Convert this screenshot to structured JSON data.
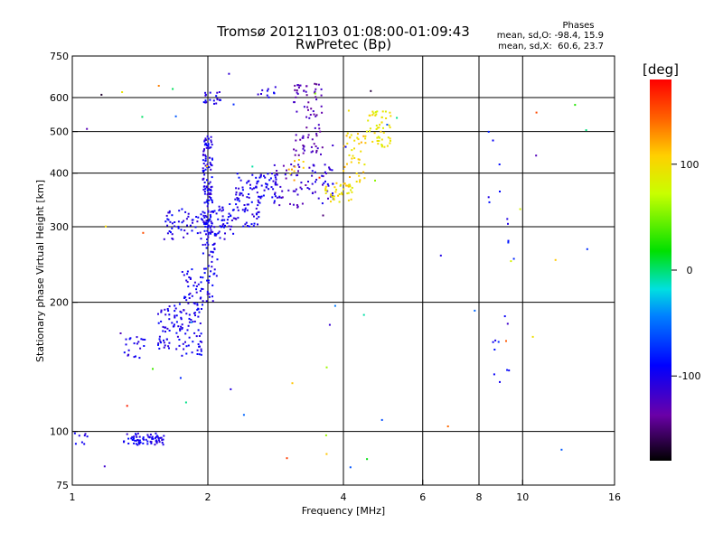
{
  "chart_data": {
    "type": "scatter",
    "title": "Tromsø 20121103 01:08:00-01:09:43",
    "subtitle": "RwPretec (Bp)",
    "xlabel": "Frequency [MHz]",
    "ylabel": "Stationary phase Virtual Height [km]",
    "x_scale": "log",
    "y_scale": "log",
    "xlim": [
      1,
      16
    ],
    "ylim": [
      75,
      750
    ],
    "x_ticks": [
      "1",
      "2",
      "4",
      "6",
      "8",
      "10",
      "16"
    ],
    "x_tick_values": [
      1,
      2,
      4,
      6,
      8,
      10,
      16
    ],
    "y_ticks": [
      "750",
      "600",
      "500",
      "400",
      "300",
      "200",
      "100",
      "75"
    ],
    "y_tick_values": [
      750,
      600,
      500,
      400,
      300,
      200,
      100,
      75
    ],
    "y_gridlines": [
      600,
      500,
      400,
      300,
      200,
      100
    ],
    "x_gridlines": [
      2,
      4,
      6,
      8,
      10
    ],
    "grid": true,
    "stats": {
      "heading": "Phases",
      "line1": "mean, sd,O: -98.4, 15.9",
      "line2": "mean, sd,X:  60.6, 23.7"
    },
    "colorbar": {
      "label": "[deg]",
      "range": [
        -180,
        180
      ],
      "ticks": [
        "100",
        "0",
        "-100"
      ],
      "tick_values": [
        100,
        0,
        -100
      ],
      "placement": "right"
    },
    "series": [
      {
        "clusters": [
          {
            "f": [
              1.0,
              1.08
            ],
            "h": [
              92,
              100
            ],
            "phase": -100,
            "n": 8
          },
          {
            "f": [
              1.3,
              1.6
            ],
            "h": [
              93,
              99
            ],
            "phase": -100,
            "n": 70
          },
          {
            "f": [
              1.3,
              1.45
            ],
            "h": [
              148,
              168
            ],
            "phase": -100,
            "n": 20
          },
          {
            "f": [
              1.55,
              1.75
            ],
            "h": [
              155,
              200
            ],
            "phase": -100,
            "n": 60
          },
          {
            "f": [
              1.75,
              1.95
            ],
            "h": [
              150,
              240
            ],
            "phase": -100,
            "n": 90
          },
          {
            "f": [
              1.6,
              2.3
            ],
            "h": [
              280,
              330
            ],
            "phase": -100,
            "n": 100
          },
          {
            "f": [
              1.95,
              2.05
            ],
            "h": [
              300,
              490
            ],
            "phase": -100,
            "n": 110
          },
          {
            "f": [
              1.95,
              2.1
            ],
            "h": [
              200,
              300
            ],
            "phase": -100,
            "n": 50
          },
          {
            "f": [
              1.95,
              2.15
            ],
            "h": [
              580,
              620
            ],
            "phase": -100,
            "n": 20
          },
          {
            "f": [
              2.1,
              2.6
            ],
            "h": [
              300,
              340
            ],
            "phase": -100,
            "n": 50
          },
          {
            "f": [
              2.3,
              2.9
            ],
            "h": [
              340,
              400
            ],
            "phase": -100,
            "n": 80
          },
          {
            "f": [
              2.5,
              2.9
            ],
            "h": [
              600,
              640
            ],
            "phase": -100,
            "n": 10
          },
          {
            "f": [
              2.8,
              3.3
            ],
            "h": [
              330,
              420
            ],
            "phase": -120,
            "n": 40
          },
          {
            "f": [
              3.1,
              3.6
            ],
            "h": [
              440,
              650
            ],
            "phase": -130,
            "n": 80
          },
          {
            "f": [
              3.3,
              3.8
            ],
            "h": [
              340,
              420
            ],
            "phase": -110,
            "n": 40
          },
          {
            "f": [
              3.6,
              4.2
            ],
            "h": [
              340,
              380
            ],
            "phase": 100,
            "n": 40
          },
          {
            "f": [
              4.0,
              4.5
            ],
            "h": [
              380,
              500
            ],
            "phase": 105,
            "n": 40
          },
          {
            "f": [
              4.5,
              5.1
            ],
            "h": [
              460,
              560
            ],
            "phase": 95,
            "n": 50
          },
          {
            "f": [
              3.0,
              3.3
            ],
            "h": [
              380,
              430
            ],
            "phase": 110,
            "n": 10
          },
          {
            "f": [
              8.2,
              9.6
            ],
            "h": [
              120,
              600
            ],
            "phase": -90,
            "n": 20
          },
          {
            "f": [
              1.0,
              16.0
            ],
            "h": [
              80,
              700
            ],
            "phase": 0,
            "n": 60
          }
        ]
      }
    ]
  }
}
